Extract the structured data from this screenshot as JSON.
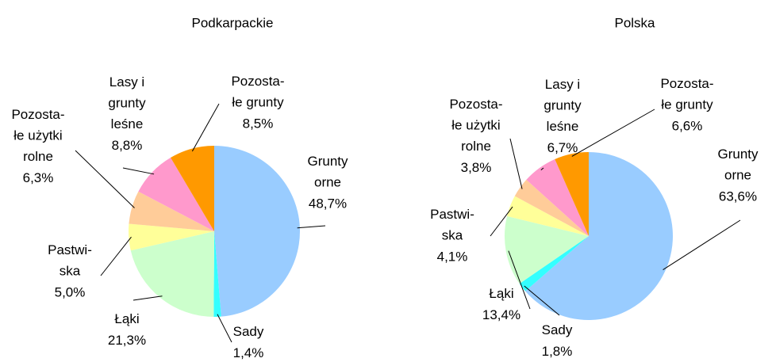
{
  "chart_data": [
    {
      "type": "pie",
      "title": "Podkarpackie",
      "categories": [
        "Grunty\norne",
        "Sady",
        "Łąki",
        "Pastwi-\nska",
        "Pozosta-\nłe użytki\nrolne",
        "Lasy i\ngrunty\nleśne",
        "Pozosta-\nłe grunty"
      ],
      "values": [
        48.7,
        1.4,
        21.3,
        5.0,
        6.3,
        8.8,
        8.5
      ],
      "value_labels": [
        "48,7%",
        "1,4%",
        "21,3%",
        "5,0%",
        "6,3%",
        "8,8%",
        "8,5%"
      ],
      "colors": [
        "#99ccff",
        "#33ffff",
        "#ccffcc",
        "#ffff99",
        "#ffcc99",
        "#ff99cc",
        "#ff9900"
      ]
    },
    {
      "type": "pie",
      "title": "Polska",
      "categories": [
        "Grunty\norne",
        "Sady",
        "Łąki",
        "Pastwi-\nska",
        "Pozosta-\nłe użytki\nrolne",
        "Lasy i\ngrunty\nleśne",
        "Pozosta-\nłe grunty"
      ],
      "values": [
        63.6,
        1.8,
        13.4,
        4.1,
        3.8,
        6.7,
        6.6
      ],
      "value_labels": [
        "63,6%",
        "1,8%",
        "13,4%",
        "4,1%",
        "3,8%",
        "6,7%",
        "6,6%"
      ],
      "colors": [
        "#99ccff",
        "#33ffff",
        "#ccffcc",
        "#ffff99",
        "#ffcc99",
        "#ff99cc",
        "#ff9900"
      ]
    }
  ]
}
